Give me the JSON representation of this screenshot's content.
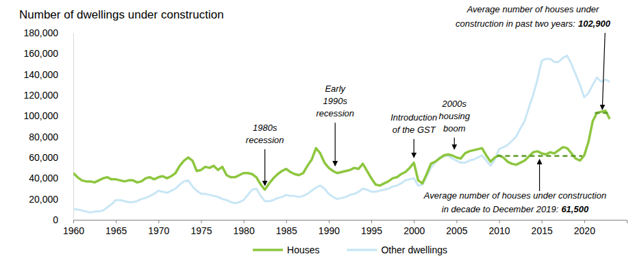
{
  "chart_data": {
    "type": "line",
    "title": "Number of dwellings under construction",
    "legend": "bottom",
    "grid": false,
    "xlim": [
      1960,
      2025
    ],
    "xticks": [
      1960,
      1965,
      1970,
      1975,
      1980,
      1985,
      1990,
      1995,
      2000,
      2005,
      2010,
      2015,
      2020
    ],
    "ylim": [
      0,
      180000
    ],
    "yticks": [
      0,
      {
        "value": 20000,
        "label": "20,000"
      },
      {
        "value": 40000,
        "label": "40,000"
      },
      {
        "value": 60000,
        "label": "60,000"
      },
      {
        "value": 80000,
        "label": "80,000"
      },
      {
        "value": 100000,
        "label": "100,000"
      },
      {
        "value": 120000,
        "label": "120,000"
      },
      {
        "value": 140000,
        "label": "140,000"
      },
      {
        "value": 160000,
        "label": "160,000"
      },
      {
        "value": 180000,
        "label": "180,000"
      }
    ],
    "x": [
      1960,
      1960.5,
      1961,
      1961.5,
      1962,
      1962.5,
      1963,
      1963.5,
      1964,
      1964.5,
      1965,
      1965.5,
      1966,
      1966.5,
      1967,
      1967.5,
      1968,
      1968.5,
      1969,
      1969.5,
      1970,
      1970.5,
      1971,
      1971.5,
      1972,
      1972.5,
      1973,
      1973.5,
      1974,
      1974.5,
      1975,
      1975.5,
      1976,
      1976.5,
      1977,
      1977.5,
      1978,
      1978.5,
      1979,
      1979.5,
      1980,
      1980.5,
      1981,
      1981.5,
      1982,
      1982.5,
      1983,
      1983.5,
      1984,
      1984.5,
      1985,
      1985.5,
      1986,
      1986.5,
      1987,
      1987.5,
      1988,
      1988.5,
      1989,
      1989.5,
      1990,
      1990.5,
      1991,
      1991.5,
      1992,
      1992.5,
      1993,
      1993.5,
      1994,
      1994.5,
      1995,
      1995.5,
      1996,
      1996.5,
      1997,
      1997.5,
      1998,
      1998.5,
      1999,
      1999.5,
      2000,
      2000.5,
      2001,
      2001.5,
      2002,
      2002.5,
      2003,
      2003.5,
      2004,
      2004.5,
      2005,
      2005.5,
      2006,
      2006.5,
      2007,
      2007.5,
      2008,
      2008.5,
      2009,
      2009.5,
      2010,
      2010.5,
      2011,
      2011.5,
      2012,
      2012.5,
      2013,
      2013.5,
      2014,
      2014.5,
      2015,
      2015.5,
      2016,
      2016.5,
      2017,
      2017.5,
      2018,
      2018.5,
      2019,
      2019.5,
      2020,
      2020.5,
      2021,
      2021.5,
      2022,
      2022.5,
      2023
    ],
    "series": [
      {
        "name": "Houses",
        "color": "#8dc63f",
        "line_style": "solid",
        "values": [
          45000,
          41000,
          38000,
          37000,
          37000,
          36000,
          38000,
          40000,
          41000,
          39000,
          39000,
          38000,
          37000,
          38000,
          38000,
          36000,
          37000,
          40000,
          41000,
          39000,
          41000,
          42000,
          40000,
          42000,
          45000,
          52000,
          57000,
          60000,
          57000,
          47000,
          48000,
          51000,
          50000,
          52000,
          48000,
          51000,
          43000,
          41000,
          41000,
          43000,
          45000,
          45000,
          44000,
          41000,
          34000,
          29000,
          35000,
          40000,
          44000,
          47000,
          49000,
          46000,
          44000,
          43000,
          45000,
          52000,
          58000,
          69000,
          64000,
          55000,
          50000,
          47000,
          45000,
          46000,
          47000,
          48000,
          50000,
          49000,
          54000,
          47000,
          40000,
          34000,
          33000,
          35000,
          37000,
          40000,
          41000,
          44000,
          46000,
          50000,
          55000,
          38000,
          35000,
          44000,
          54000,
          56000,
          59000,
          62000,
          63000,
          62000,
          60000,
          59000,
          64000,
          66000,
          67000,
          68000,
          69000,
          62000,
          56000,
          60000,
          62000,
          60000,
          56000,
          54000,
          53000,
          55000,
          57000,
          61000,
          65000,
          66000,
          64000,
          63000,
          65000,
          64000,
          67000,
          70000,
          69000,
          64000,
          59000,
          57000,
          62000,
          75000,
          95000,
          103000,
          104000,
          105000,
          97000
        ]
      },
      {
        "name": "Other dwellings",
        "color": "#c9e6f5",
        "line_style": "solid",
        "values": [
          10000,
          10000,
          9000,
          8000,
          7000,
          8000,
          8000,
          9000,
          12000,
          15000,
          19000,
          19000,
          18000,
          17000,
          17000,
          18000,
          20000,
          21000,
          23000,
          25000,
          28000,
          27000,
          26000,
          28000,
          30000,
          34000,
          37000,
          38000,
          32000,
          28000,
          25000,
          25000,
          24000,
          23000,
          22000,
          20000,
          19000,
          17000,
          16000,
          17000,
          19000,
          24000,
          29000,
          30000,
          23000,
          18000,
          18000,
          19000,
          21000,
          22000,
          24000,
          23000,
          23000,
          22000,
          23000,
          25000,
          28000,
          31000,
          33000,
          30000,
          25000,
          22000,
          20000,
          21000,
          22000,
          24000,
          25000,
          27000,
          30000,
          29000,
          27000,
          27000,
          28000,
          29000,
          30000,
          32000,
          33000,
          35000,
          38000,
          39000,
          40000,
          33000,
          34000,
          42000,
          50000,
          55000,
          60000,
          61000,
          62000,
          59000,
          57000,
          55000,
          55000,
          57000,
          58000,
          60000,
          62000,
          57000,
          52000,
          58000,
          68000,
          70000,
          72000,
          76000,
          80000,
          88000,
          95000,
          108000,
          120000,
          135000,
          153000,
          155000,
          155000,
          152000,
          152000,
          156000,
          158000,
          150000,
          140000,
          130000,
          118000,
          122000,
          130000,
          137000,
          133000,
          135000,
          133000
        ]
      }
    ],
    "annotations": [
      {
        "text": [
          "1980s",
          "recession"
        ],
        "x": 1982.5,
        "y": 31000
      },
      {
        "text": [
          "Early",
          "1990s",
          "recession"
        ],
        "x": 1990.75,
        "y": 50000
      },
      {
        "text": [
          "Introduction",
          "of the GST"
        ],
        "x": 2000,
        "y": 58000
      },
      {
        "text": [
          "2000s",
          "housing",
          "boom"
        ],
        "x": 2004.75,
        "y": 66000
      }
    ],
    "reference_lines": [
      {
        "value": 102900,
        "label": "102,900",
        "x": [
          2021.25,
          2023
        ],
        "color": "#5b9a2a",
        "line_style": "dashed",
        "text": [
          "Average number of houses under",
          "construction in past two years:"
        ]
      },
      {
        "value": 61500,
        "label": "61,500",
        "x": [
          2009.75,
          2019.75
        ],
        "color": "#5b9a2a",
        "line_style": "dashed",
        "text": [
          "Average number of houses under construction",
          "in decade to December 2019:"
        ]
      }
    ]
  }
}
